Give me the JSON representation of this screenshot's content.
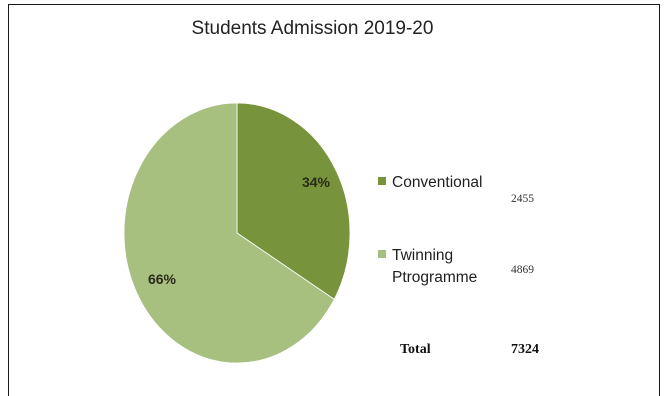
{
  "chart_data": {
    "type": "pie",
    "title": "Students Admission 2019-20",
    "slices": [
      {
        "name": "Conventional",
        "value": 2455,
        "percent_label": "34%",
        "color": "#77933c"
      },
      {
        "name": "Twinning Ptrogramme",
        "value": 4869,
        "percent_label": "66%",
        "color": "#a7c080"
      }
    ],
    "legend_placement": "right",
    "total": {
      "label": "Total",
      "value": "7324"
    }
  },
  "legend_rows": [
    {
      "line1": "Conventional",
      "line2": "",
      "count": "2455"
    },
    {
      "line1": "Twinning",
      "line2": "Ptrogramme",
      "count": "4869"
    }
  ]
}
